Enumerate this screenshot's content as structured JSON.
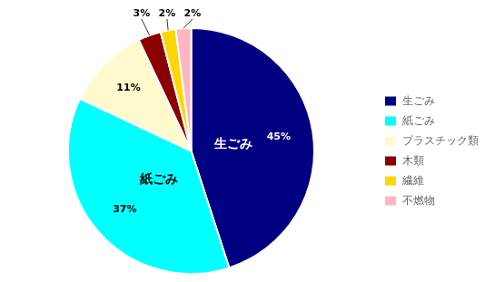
{
  "chart_data": {
    "type": "pie",
    "categories": [
      "生ごみ",
      "紙ごみ",
      "プラスチック類",
      "木類",
      "繊維",
      "不燃物"
    ],
    "values": [
      45,
      37,
      11,
      3,
      2,
      2
    ],
    "value_labels": [
      "45%",
      "37%",
      "11%",
      "3%",
      "2%",
      "2%"
    ],
    "colors": [
      "#000080",
      "#00FFFF",
      "#FFFACD",
      "#8B0000",
      "#FFD700",
      "#FFB6C1"
    ],
    "data_labels": true,
    "annotations": [
      {
        "label": "生ごみ",
        "category": "生ごみ"
      },
      {
        "label": "紙ごみ",
        "category": "紙ごみ"
      }
    ],
    "legend": "right"
  }
}
